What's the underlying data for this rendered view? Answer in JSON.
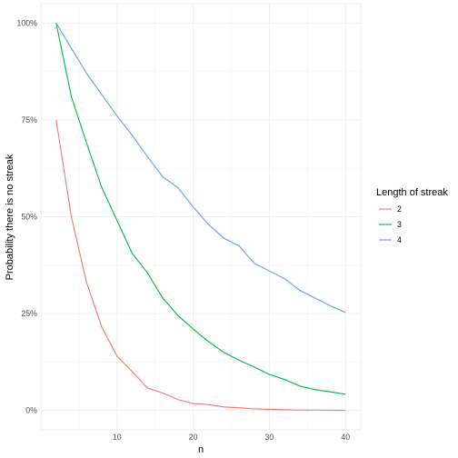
{
  "chart_data": {
    "type": "line",
    "xlabel": "n",
    "ylabel": "Probability there is no streak",
    "xlim": [
      0,
      42
    ],
    "ylim": [
      -0.05,
      1.05
    ],
    "x_ticks": [
      10,
      20,
      30,
      40
    ],
    "x_tick_labels": [
      "10",
      "20",
      "30",
      "40"
    ],
    "y_ticks": [
      0,
      0.25,
      0.5,
      0.75,
      1.0
    ],
    "y_tick_labels": [
      "0%",
      "25%",
      "50%",
      "75%",
      "100%"
    ],
    "grid": true,
    "legend": {
      "title": "Length of streak",
      "position": "right"
    },
    "series": [
      {
        "name": "2",
        "color": "#F8766D",
        "x": [
          2,
          4,
          6,
          8,
          10,
          12,
          14,
          16,
          18,
          20,
          22,
          24,
          26,
          28,
          30,
          32,
          34,
          36,
          38,
          40
        ],
        "values": [
          0.75,
          0.5,
          0.33,
          0.215,
          0.14,
          0.1,
          0.058,
          0.045,
          0.028,
          0.018,
          0.015,
          0.009,
          0.007,
          0.004,
          0.003,
          0.002,
          0.001,
          0.001,
          0.0005,
          0.0003
        ]
      },
      {
        "name": "3",
        "color": "#00BA38",
        "x": [
          2,
          4,
          6,
          8,
          10,
          12,
          14,
          16,
          18,
          20,
          22,
          24,
          26,
          28,
          30,
          32,
          34,
          36,
          38,
          40
        ],
        "values": [
          1.0,
          0.81,
          0.69,
          0.575,
          0.49,
          0.405,
          0.355,
          0.29,
          0.245,
          0.21,
          0.178,
          0.15,
          0.13,
          0.112,
          0.093,
          0.08,
          0.063,
          0.054,
          0.048,
          0.042
        ]
      },
      {
        "name": "4",
        "color": "#619CFF",
        "x": [
          2,
          4,
          6,
          8,
          10,
          12,
          14,
          16,
          18,
          20,
          22,
          24,
          26,
          28,
          30,
          32,
          34,
          36,
          38,
          40
        ],
        "values": [
          1.0,
          0.935,
          0.87,
          0.815,
          0.76,
          0.71,
          0.655,
          0.603,
          0.575,
          0.525,
          0.48,
          0.445,
          0.425,
          0.38,
          0.36,
          0.34,
          0.31,
          0.29,
          0.27,
          0.253
        ]
      }
    ]
  }
}
